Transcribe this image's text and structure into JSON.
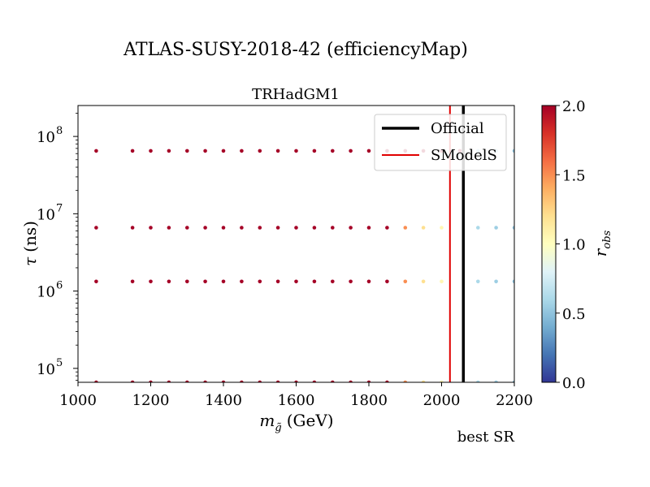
{
  "chart_data": {
    "type": "scatter",
    "title": "ATLAS-SUSY-2018-42 (efficiencyMap)",
    "subtitle": "TRHadGM1",
    "xlabel_main": "m",
    "xlabel_sub": "g̃",
    "xlabel_unit": "(GeV)",
    "ylabel_sym": "τ",
    "ylabel_unit": "(ns)",
    "xlim": [
      1000,
      2200
    ],
    "ylim_log10": [
      4.82,
      8.4
    ],
    "y_log": true,
    "x_ticks": [
      "1000",
      "1200",
      "1400",
      "1600",
      "1800",
      "2000",
      "2200"
    ],
    "y_tick_exponents": [
      "5",
      "6",
      "7",
      "8"
    ],
    "y_tick_base": "10",
    "colorbar": {
      "label_sym": "r",
      "label_sub": "obs",
      "range": [
        0.0,
        2.0
      ],
      "ticks": [
        "0.0",
        "0.5",
        "1.0",
        "1.5",
        "2.0"
      ],
      "colormap": "RdYlBu_r"
    },
    "legend": {
      "placement": "top-right",
      "entries": [
        {
          "label": "Official",
          "color": "#000000"
        },
        {
          "label": "SModelS",
          "color": "#e00000"
        }
      ]
    },
    "lines": [
      {
        "name": "Official",
        "x": 2060,
        "color": "#000000"
      },
      {
        "name": "SModelS",
        "x": 2023,
        "color": "#e00000"
      }
    ],
    "footer": "best SR",
    "tau_values": [
      65000000.0,
      6600000.0,
      1330000.0,
      66000.0
    ],
    "mass_values": [
      1050,
      1150,
      1200,
      1250,
      1300,
      1350,
      1400,
      1450,
      1500,
      1550,
      1600,
      1650,
      1700,
      1750,
      1800,
      1850,
      1900,
      1950,
      2000,
      2050,
      2100,
      2150,
      2200
    ],
    "r_obs_rows": [
      [
        2.0,
        2.0,
        2.0,
        2.0,
        2.0,
        2.0,
        2.0,
        2.0,
        2.0,
        2.0,
        2.0,
        2.0,
        2.0,
        2.0,
        2.0,
        2.0,
        2.0,
        2.0,
        2.0,
        2.0,
        0.55,
        0.5,
        0.5
      ],
      [
        2.0,
        2.0,
        2.0,
        2.0,
        2.0,
        2.0,
        2.0,
        2.0,
        2.0,
        2.0,
        2.0,
        2.0,
        2.0,
        2.0,
        2.0,
        2.0,
        1.5,
        1.2,
        1.05,
        0.0,
        0.6,
        0.55,
        0.5
      ],
      [
        2.0,
        2.0,
        2.0,
        2.0,
        2.0,
        2.0,
        2.0,
        2.0,
        2.0,
        2.0,
        2.0,
        2.0,
        2.0,
        2.0,
        2.0,
        2.0,
        1.5,
        1.2,
        1.05,
        0.0,
        0.6,
        0.55,
        0.5
      ],
      [
        2.0,
        2.0,
        2.0,
        2.0,
        2.0,
        2.0,
        2.0,
        2.0,
        2.0,
        2.0,
        2.0,
        2.0,
        2.0,
        2.0,
        2.0,
        2.0,
        1.5,
        1.2,
        1.05,
        0.0,
        0.6,
        0.55,
        0.5
      ]
    ]
  }
}
